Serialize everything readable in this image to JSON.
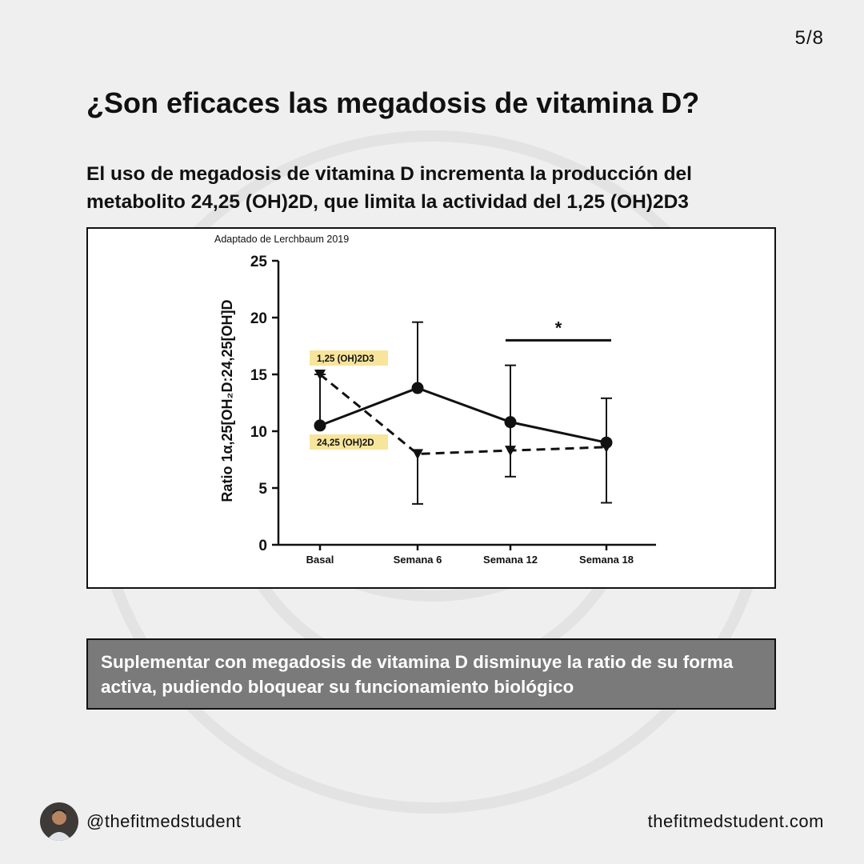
{
  "page": {
    "number": "5/8"
  },
  "heading": {
    "title": "¿Son eficaces las megadosis de vitamina D?",
    "subtitle": "El uso de megadosis de vitamina D incrementa la producción del metabolito 24,25 (OH)2D, que limita la actividad del 1,25 (OH)2D3"
  },
  "chart_source": "Adaptado de Lerchbaum 2019",
  "chart_data": {
    "type": "line",
    "ylabel": "Ratio 1α,25[OH₂D:24,25[OH]D",
    "ylim": [
      0,
      25
    ],
    "yticks": [
      0,
      5,
      10,
      15,
      20,
      25
    ],
    "categories": [
      "Basal",
      "Semana 6",
      "Semana 12",
      "Semana 18"
    ],
    "grid": false,
    "series": [
      {
        "name": "1,25 (OH)2D3",
        "style": "solid",
        "marker": "circle",
        "values": [
          10.5,
          13.8,
          10.8,
          9.0
        ],
        "error_upper": [
          15.0,
          19.6,
          15.8,
          12.9
        ],
        "error_lower": [
          null,
          null,
          6.0,
          3.7
        ]
      },
      {
        "name": "24,25 (OH)2D",
        "style": "dashed",
        "marker": "triangle-down",
        "values": [
          15.0,
          8.0,
          8.3,
          8.6
        ],
        "error_upper": [
          null,
          null,
          null,
          null
        ],
        "error_lower": [
          null,
          3.6,
          null,
          null
        ]
      }
    ],
    "significance": {
      "label": "*",
      "from": "Semana 12",
      "to": "Semana 18",
      "y": 18
    }
  },
  "callout": {
    "text": "Suplementar con megadosis de vitamina D disminuye la ratio de su forma activa, pudiendo bloquear su funcionamiento biológico"
  },
  "footer": {
    "handle": "@thefitmedstudent",
    "website": "thefitmedstudent.com"
  },
  "colors": {
    "background": "#efefef",
    "callout_bg": "#7a7a7a",
    "label_highlight": "#f7e59c",
    "ink": "#111111"
  }
}
